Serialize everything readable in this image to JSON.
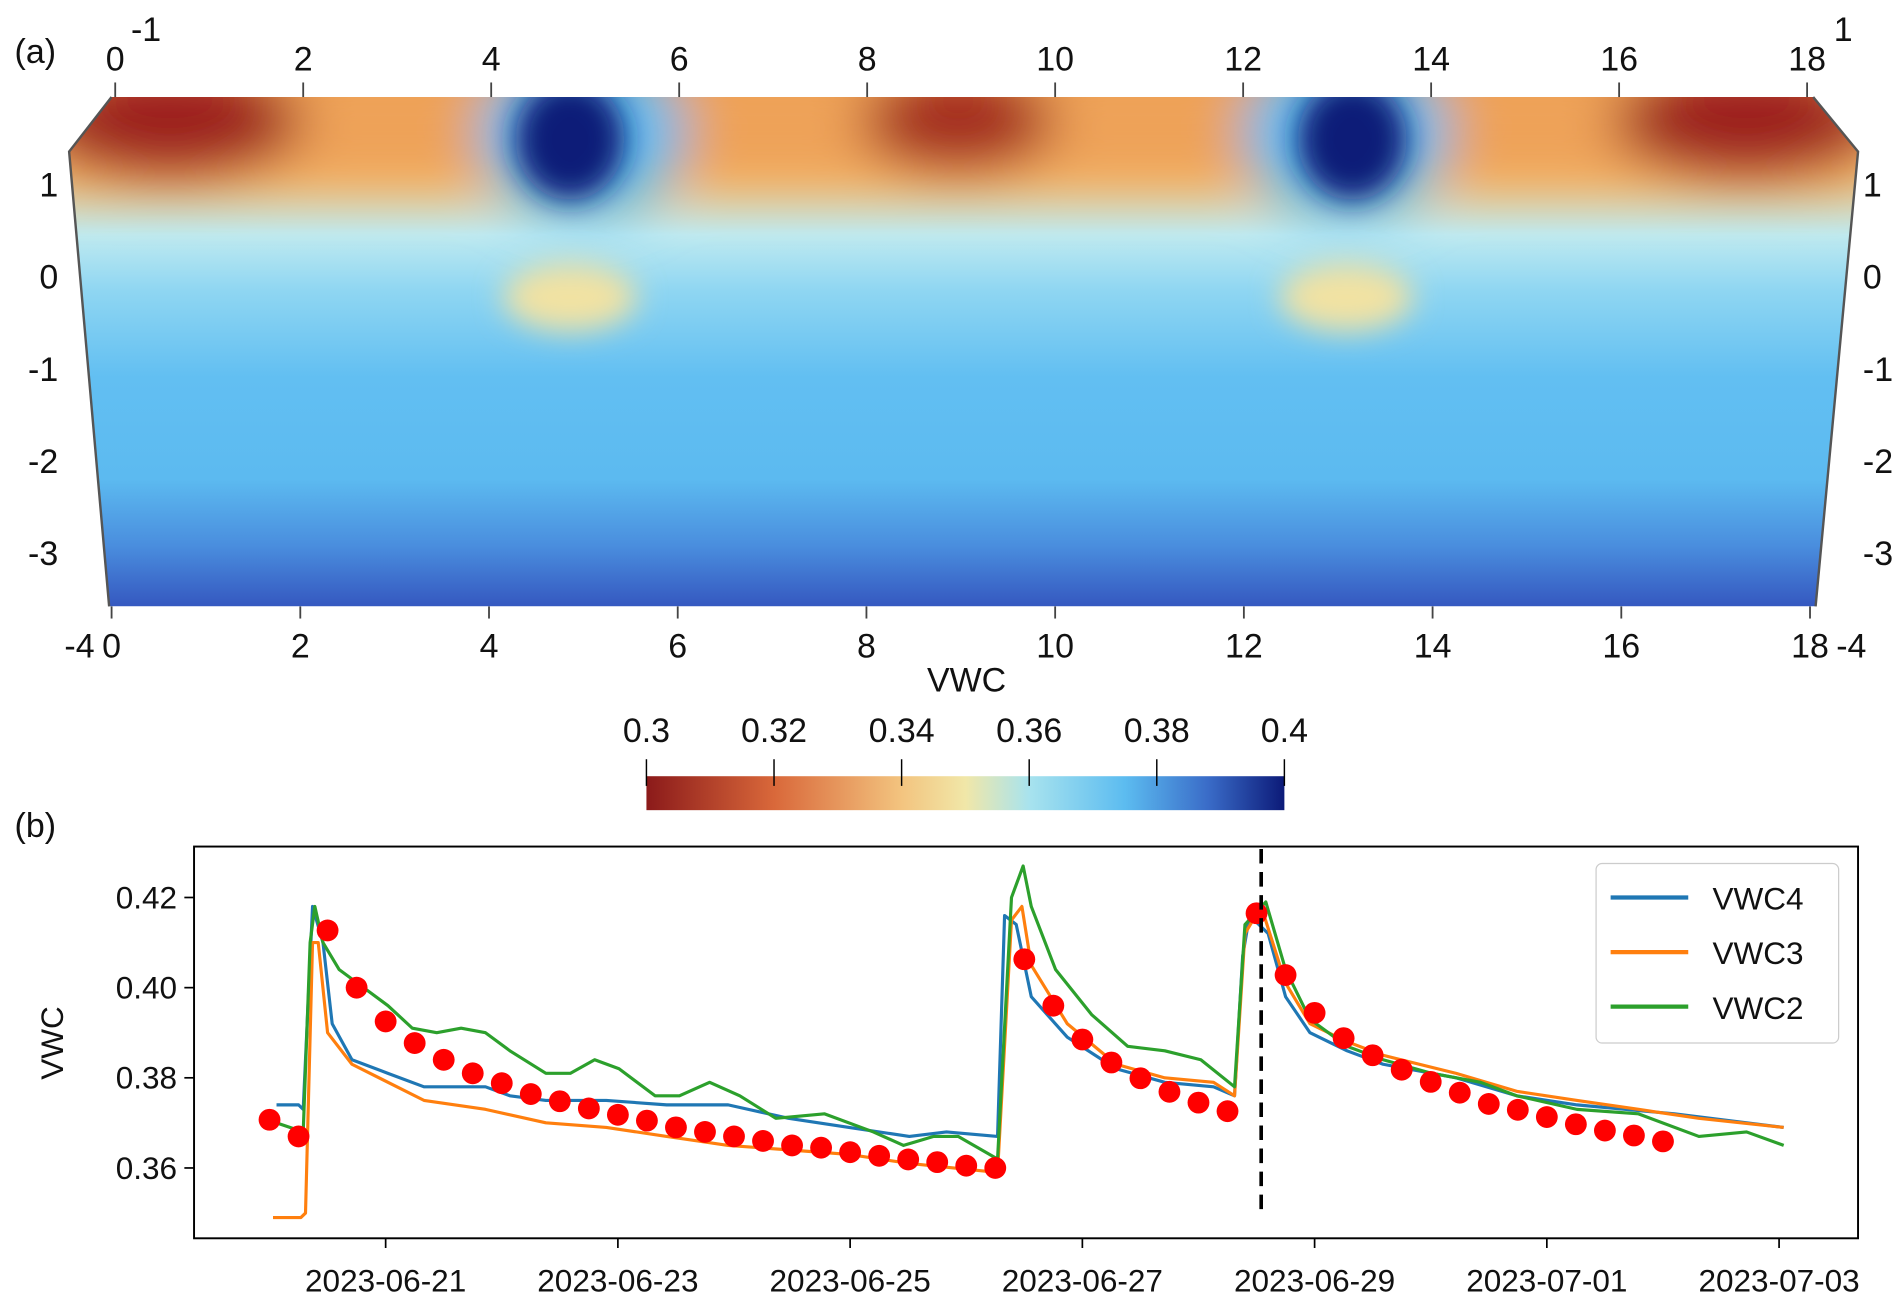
{
  "panel_a": {
    "label": "(a)",
    "top_ticks": [
      "0",
      "2",
      "4",
      "6",
      "8",
      "10",
      "12",
      "14",
      "16",
      "18"
    ],
    "bottom_ticks": [
      "0",
      "2",
      "4",
      "6",
      "8",
      "10",
      "12",
      "14",
      "16",
      "18"
    ],
    "left_ticks": [
      "1",
      "0",
      "-1",
      "-2",
      "-3"
    ],
    "right_ticks": [
      "1",
      "0",
      "-1",
      "-2",
      "-3"
    ],
    "corner_labels": {
      "top_left": "-1",
      "top_right": "1",
      "bottom_left": "-4",
      "bottom_right": "-4"
    },
    "colorbar": {
      "title": "VWC",
      "ticks": [
        "0.3",
        "0.32",
        "0.34",
        "0.36",
        "0.38",
        "0.4"
      ],
      "range": [
        0.3,
        0.4
      ],
      "colors": [
        "#8b1a1a",
        "#d9683a",
        "#f3c47f",
        "#f1e7a8",
        "#a8e3ee",
        "#5cbcf0",
        "#3a6cc8",
        "#0c1a78"
      ]
    }
  },
  "chart_data": {
    "type": "line",
    "panel_label": "(b)",
    "title": "",
    "xlabel": "",
    "ylabel": "VWC",
    "x_units": "days since 2023-06-21",
    "xlim": [
      -1.65,
      12.68
    ],
    "ylim": [
      0.3444,
      0.4313
    ],
    "x_ticks": [
      {
        "day": 0,
        "label": "2023-06-21"
      },
      {
        "day": 2,
        "label": "2023-06-23"
      },
      {
        "day": 4,
        "label": "2023-06-25"
      },
      {
        "day": 6,
        "label": "2023-06-27"
      },
      {
        "day": 8,
        "label": "2023-06-29"
      },
      {
        "day": 10,
        "label": "2023-07-01"
      },
      {
        "day": 12,
        "label": "2023-07-03"
      }
    ],
    "y_ticks": [
      {
        "value": 0.36,
        "label": "0.36"
      },
      {
        "value": 0.38,
        "label": "0.38"
      },
      {
        "value": 0.4,
        "label": "0.40"
      },
      {
        "value": 0.42,
        "label": "0.42"
      }
    ],
    "legend_position": "top-right",
    "series": [
      {
        "name": "VWC4",
        "color": "#1f77b4",
        "x": [
          -0.94,
          -0.75,
          -0.71,
          -0.63,
          -0.54,
          -0.46,
          -0.29,
          0.02,
          0.33,
          0.86,
          1.07,
          1.38,
          1.9,
          2.42,
          2.95,
          3.47,
          3.99,
          4.51,
          4.83,
          5.27,
          5.33,
          5.43,
          5.56,
          5.87,
          6.29,
          6.71,
          7.13,
          7.31,
          7.38,
          7.44,
          7.6,
          7.75,
          7.96,
          8.28,
          8.59,
          9.22,
          9.74,
          10.26,
          11.1,
          12.04
        ],
        "y": [
          0.374,
          0.374,
          0.373,
          0.418,
          0.41,
          0.392,
          0.384,
          0.381,
          0.378,
          0.378,
          0.376,
          0.375,
          0.375,
          0.374,
          0.374,
          0.371,
          0.369,
          0.367,
          0.368,
          0.367,
          0.416,
          0.414,
          0.398,
          0.389,
          0.382,
          0.379,
          0.378,
          0.376,
          0.407,
          0.416,
          0.412,
          0.398,
          0.39,
          0.386,
          0.383,
          0.38,
          0.376,
          0.374,
          0.372,
          0.369
        ]
      },
      {
        "name": "VWC3",
        "color": "#ff7f0e",
        "x": [
          -0.97,
          -0.73,
          -0.69,
          -0.63,
          -0.58,
          -0.5,
          -0.29,
          0.02,
          0.33,
          0.86,
          1.38,
          1.9,
          2.42,
          2.95,
          3.47,
          3.99,
          4.51,
          5.27,
          5.39,
          5.48,
          5.56,
          5.87,
          6.29,
          6.71,
          7.13,
          7.31,
          7.4,
          7.54,
          7.75,
          7.96,
          8.28,
          8.59,
          9.22,
          9.74,
          10.26,
          10.79,
          11.31,
          12.04
        ],
        "y": [
          0.349,
          0.349,
          0.35,
          0.41,
          0.41,
          0.39,
          0.383,
          0.379,
          0.375,
          0.373,
          0.37,
          0.369,
          0.367,
          0.365,
          0.364,
          0.363,
          0.361,
          0.359,
          0.415,
          0.418,
          0.405,
          0.392,
          0.383,
          0.38,
          0.379,
          0.376,
          0.412,
          0.418,
          0.401,
          0.392,
          0.388,
          0.385,
          0.381,
          0.377,
          0.375,
          0.373,
          0.371,
          0.369
        ]
      },
      {
        "name": "VWC2",
        "color": "#2ca02c",
        "x": [
          -0.94,
          -0.71,
          -0.65,
          -0.61,
          -0.54,
          -0.4,
          -0.19,
          0.02,
          0.23,
          0.44,
          0.65,
          0.86,
          1.07,
          1.38,
          1.59,
          1.8,
          2.01,
          2.32,
          2.53,
          2.79,
          3.05,
          3.36,
          3.78,
          4.2,
          4.46,
          4.72,
          4.93,
          5.27,
          5.39,
          5.49,
          5.56,
          5.77,
          6.08,
          6.39,
          6.71,
          7.02,
          7.31,
          7.4,
          7.58,
          7.75,
          7.96,
          8.28,
          8.59,
          9.01,
          9.43,
          9.74,
          10.26,
          10.79,
          11.31,
          11.72,
          12.04
        ],
        "y": [
          0.37,
          0.368,
          0.41,
          0.418,
          0.41,
          0.404,
          0.4,
          0.396,
          0.391,
          0.39,
          0.391,
          0.39,
          0.386,
          0.381,
          0.381,
          0.384,
          0.382,
          0.376,
          0.376,
          0.379,
          0.376,
          0.371,
          0.372,
          0.368,
          0.365,
          0.367,
          0.367,
          0.362,
          0.42,
          0.427,
          0.418,
          0.404,
          0.394,
          0.387,
          0.386,
          0.384,
          0.378,
          0.414,
          0.419,
          0.404,
          0.393,
          0.387,
          0.384,
          0.381,
          0.379,
          0.376,
          0.373,
          0.372,
          0.367,
          0.368,
          0.365
        ]
      }
    ],
    "observed_points": {
      "color": "#ff0000",
      "x_start": -1.0,
      "x_step": 0.25,
      "y": [
        0.3707,
        0.367,
        0.4127,
        0.4,
        0.3925,
        0.3877,
        0.384,
        0.381,
        0.3788,
        0.3764,
        0.3748,
        0.3732,
        0.3718,
        0.3705,
        0.369,
        0.368,
        0.367,
        0.366,
        0.365,
        0.3645,
        0.3635,
        0.3627,
        0.3619,
        0.3613,
        0.3605,
        0.36,
        0.4063,
        0.396,
        0.3885,
        0.3834,
        0.3799,
        0.3769,
        0.3745,
        0.3726,
        0.4165,
        0.4028,
        0.3944,
        0.3888,
        0.385,
        0.3818,
        0.3791,
        0.3767,
        0.3742,
        0.3729,
        0.3713,
        0.3697,
        0.3683,
        0.3672,
        0.3659
      ]
    },
    "vertical_line": {
      "day": 7.54,
      "style": "dashed"
    }
  }
}
